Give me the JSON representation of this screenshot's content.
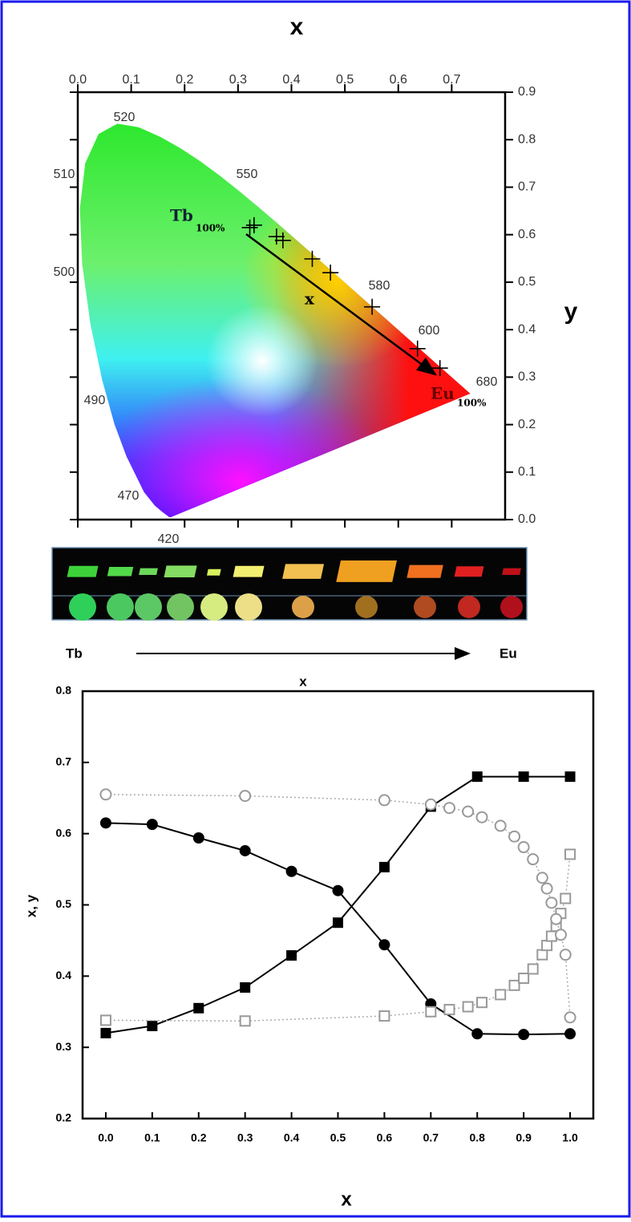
{
  "chart_data": [
    {
      "type": "cie",
      "xlabel": "x",
      "ylabel": "y",
      "xlim": [
        0,
        0.8
      ],
      "ylim": [
        0,
        0.9
      ],
      "xticks": [
        {
          "value": 0,
          "label": "0.0"
        },
        0.1,
        0.2,
        0.3,
        0.4,
        0.5,
        0.6,
        0.7
      ],
      "yticks": [
        {
          "value": 0,
          "label": "0.0"
        },
        0.1,
        0.2,
        0.3,
        0.4,
        0.5,
        0.6,
        0.7,
        0.8,
        0.9
      ],
      "wavelengths": [
        520,
        550,
        510,
        500,
        580,
        600,
        680,
        490,
        470,
        420
      ],
      "annotations": {
        "start": "Tb",
        "start_sub": "100%",
        "arrow_label": "x",
        "end": "Eu",
        "end_sub": "100%"
      },
      "series": [
        {
          "marker": "plus",
          "color": "#000000",
          "x": [
            0.322,
            0.33,
            0.372,
            0.384,
            0.439,
            0.473,
            0.551,
            0.636,
            0.678
          ],
          "values": [
            0.615,
            0.62,
            0.596,
            0.588,
            0.549,
            0.52,
            0.448,
            0.36,
            0.319
          ]
        }
      ]
    },
    {
      "type": "line",
      "xlabel": "x",
      "ylabel": "x, y",
      "xlim": [
        -0.05,
        1.05
      ],
      "ylim": [
        0.2,
        0.8
      ],
      "xticks": [
        {
          "value": 0,
          "label": "0.0"
        },
        0.1,
        0.2,
        0.3,
        0.4,
        0.5,
        0.6,
        0.7,
        0.8,
        0.9,
        {
          "value": 1,
          "label": "1.0"
        }
      ],
      "yticks": [
        0.2,
        0.3,
        0.4,
        0.5,
        0.6,
        0.7,
        0.8
      ],
      "series": [
        {
          "marker": "square",
          "filled": true,
          "color": "#000000",
          "dash": false,
          "x": [
            0,
            0.1,
            0.2,
            0.3,
            0.4,
            0.5,
            0.6,
            0.7,
            0.8,
            0.9,
            1
          ],
          "values": [
            0.32,
            0.33,
            0.355,
            0.384,
            0.429,
            0.475,
            0.553,
            0.638,
            0.68,
            0.68,
            0.68
          ]
        },
        {
          "marker": "circle",
          "filled": true,
          "color": "#000000",
          "dash": false,
          "x": [
            0,
            0.1,
            0.2,
            0.3,
            0.4,
            0.5,
            0.6,
            0.7,
            0.8,
            0.9,
            1
          ],
          "values": [
            0.615,
            0.613,
            0.594,
            0.576,
            0.547,
            0.52,
            0.444,
            0.361,
            0.319,
            0.318,
            0.319
          ]
        },
        {
          "marker": "square",
          "filled": false,
          "color": "#999999",
          "dash": true,
          "x": [
            0,
            0.3,
            0.6,
            0.7,
            0.74,
            0.78,
            0.81,
            0.85,
            0.88,
            0.9,
            0.92,
            0.94,
            0.95,
            0.96,
            0.97,
            0.98,
            0.99,
            1
          ],
          "values": [
            0.338,
            0.337,
            0.344,
            0.35,
            0.353,
            0.357,
            0.363,
            0.374,
            0.387,
            0.397,
            0.41,
            0.43,
            0.443,
            0.456,
            0.47,
            0.488,
            0.509,
            0.571
          ]
        },
        {
          "marker": "circle",
          "filled": false,
          "color": "#999999",
          "dash": true,
          "x": [
            0,
            0.3,
            0.6,
            0.7,
            0.74,
            0.78,
            0.81,
            0.85,
            0.88,
            0.9,
            0.92,
            0.94,
            0.95,
            0.96,
            0.97,
            0.98,
            0.99,
            1
          ],
          "values": [
            0.655,
            0.653,
            0.647,
            0.641,
            0.636,
            0.631,
            0.623,
            0.611,
            0.596,
            0.581,
            0.564,
            0.538,
            0.523,
            0.503,
            0.48,
            0.458,
            0.43,
            0.342
          ]
        }
      ]
    }
  ],
  "strip": {
    "start": "Tb",
    "end": "Eu",
    "axis": "x"
  }
}
